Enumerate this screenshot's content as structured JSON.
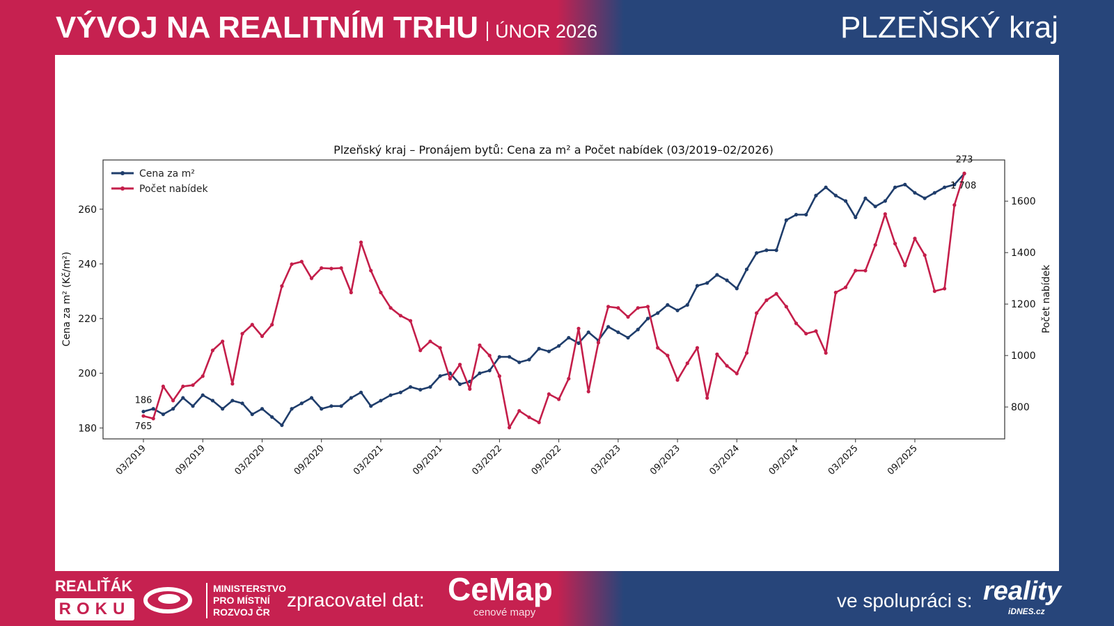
{
  "header": {
    "title": "VÝVOJ NA REALITNÍM TRHU",
    "subtitle": "ÚNOR 2026",
    "region": "PLZEŇSKÝ kraj"
  },
  "footer": {
    "award_line1": "REALIŤÁK",
    "award_line2": "ROKU",
    "ministry": [
      "MINISTERSTVO",
      "PRO MÍSTNÍ",
      "ROZVOJ ČR"
    ],
    "processor_label": "zpracovatel dat:",
    "processor_logo": "CeMap",
    "processor_logo_sub": "cenové mapy",
    "partner_label": "ve spolupráci s:",
    "partner_logo": "reality",
    "partner_logo_sub": "iDNES.cz"
  },
  "colors": {
    "red": "#c62150",
    "blue": "#27457a",
    "price_line": "#1f3d6b",
    "count_line": "#c41e4a"
  },
  "chart_data": {
    "type": "line",
    "title": "Plzeňský kraj – Pronájem bytů: Cena za m² a Počet nabídek (03/2019–02/2026)",
    "ylabel": "Cena za m² (Kč/m²)",
    "y2label": "Počet nabídek",
    "ylim": [
      176,
      278
    ],
    "y2lim": [
      676,
      1760
    ],
    "yticks": [
      180,
      200,
      220,
      240,
      260
    ],
    "y2ticks": [
      800,
      1000,
      1200,
      1400,
      1600
    ],
    "x_start": "03/2019",
    "x_end": "02/2026",
    "xticks": [
      "03/2019",
      "09/2019",
      "03/2020",
      "09/2020",
      "03/2021",
      "09/2021",
      "03/2022",
      "09/2022",
      "03/2023",
      "09/2023",
      "03/2024",
      "09/2024",
      "03/2025",
      "09/2025"
    ],
    "legend": "top-left",
    "grid": false,
    "series": [
      {
        "name": "Cena za m²",
        "axis": "left",
        "color": "#1f3d6b",
        "values": [
          186,
          187,
          185,
          187,
          191,
          188,
          192,
          190,
          187,
          190,
          189,
          185,
          187,
          184,
          181,
          187,
          189,
          191,
          187,
          188,
          188,
          191,
          193,
          188,
          190,
          192,
          193,
          195,
          194,
          195,
          199,
          200,
          196,
          197,
          200,
          201,
          206,
          206,
          204,
          205,
          209,
          208,
          210,
          213,
          211,
          215,
          212,
          217,
          215,
          213,
          216,
          220,
          222,
          225,
          223,
          225,
          232,
          233,
          236,
          234,
          231,
          238,
          244,
          245,
          245,
          256,
          258,
          258,
          265,
          268,
          265,
          263,
          257,
          264,
          261,
          263,
          268,
          269,
          266,
          264,
          266,
          268,
          269,
          273
        ]
      },
      {
        "name": "Počet nabídek",
        "axis": "right",
        "color": "#c41e4a",
        "values": [
          765,
          755,
          880,
          825,
          880,
          885,
          920,
          1020,
          1055,
          890,
          1085,
          1120,
          1075,
          1120,
          1270,
          1355,
          1365,
          1300,
          1340,
          1338,
          1340,
          1245,
          1440,
          1330,
          1245,
          1185,
          1155,
          1135,
          1020,
          1055,
          1030,
          910,
          965,
          870,
          1040,
          1000,
          920,
          720,
          785,
          760,
          740,
          850,
          830,
          910,
          1105,
          860,
          1050,
          1190,
          1185,
          1150,
          1185,
          1190,
          1030,
          1000,
          905,
          970,
          1030,
          835,
          1005,
          960,
          930,
          1010,
          1165,
          1215,
          1240,
          1190,
          1125,
          1085,
          1095,
          1010,
          1245,
          1265,
          1330,
          1330,
          1430,
          1550,
          1435,
          1350,
          1455,
          1390,
          1250,
          1260,
          1585,
          1708
        ]
      }
    ],
    "annotations": {
      "price_first": "186",
      "count_first": "765",
      "price_last": "273",
      "count_last": "1 708"
    }
  }
}
